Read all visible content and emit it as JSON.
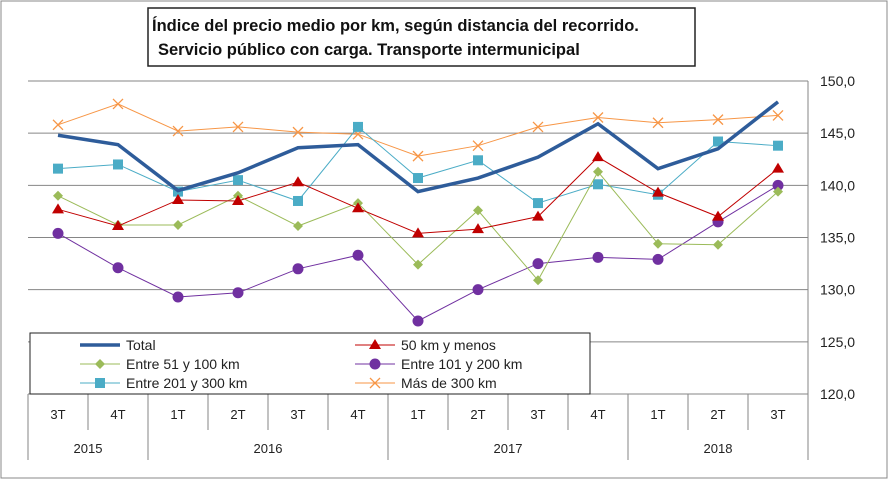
{
  "chart_data": {
    "type": "line",
    "title": [
      "Índice del precio medio por km, según distancia del recorrido.",
      "Servicio público con carga. Transporte  intermunicipal"
    ],
    "categories": [
      "3T",
      "4T",
      "1T",
      "2T",
      "3T",
      "4T",
      "1T",
      "2T",
      "3T",
      "4T",
      "1T",
      "2T",
      "3T"
    ],
    "years": [
      {
        "label": "2015",
        "span": 2
      },
      {
        "label": "2016",
        "span": 4
      },
      {
        "label": "2017",
        "span": 4
      },
      {
        "label": "2018",
        "span": 3
      }
    ],
    "ylim": [
      120,
      150
    ],
    "yticks": [
      "120,0",
      "125,0",
      "130,0",
      "135,0",
      "140,0",
      "145,0",
      "150,0"
    ],
    "grid": true,
    "legend_position": "bottom-left",
    "series": [
      {
        "name": "Total",
        "color": "#2E5C9A",
        "marker": "none",
        "values": [
          144.8,
          143.9,
          139.5,
          141.2,
          143.6,
          143.9,
          139.4,
          140.7,
          142.7,
          145.9,
          141.6,
          143.5,
          148.0
        ]
      },
      {
        "name": "50 km y menos",
        "color": "#C00000",
        "marker": "triangle",
        "values": [
          137.7,
          136.1,
          138.6,
          138.5,
          140.3,
          137.8,
          135.4,
          135.8,
          137.0,
          142.7,
          139.3,
          137.0,
          141.6
        ]
      },
      {
        "name": "Entre 51 y 100 km",
        "color": "#9BBB59",
        "marker": "diamond",
        "values": [
          139.0,
          136.2,
          136.2,
          139.0,
          136.1,
          138.3,
          132.4,
          137.6,
          130.9,
          141.3,
          134.4,
          134.3,
          139.4
        ]
      },
      {
        "name": "Entre 101 y 200 km",
        "color": "#7030A0",
        "marker": "circle",
        "values": [
          135.4,
          132.1,
          129.3,
          129.7,
          132.0,
          133.3,
          127.0,
          130.0,
          132.5,
          133.1,
          132.9,
          136.5,
          140.0
        ]
      },
      {
        "name": "Entre 201 y 300 km",
        "color": "#4BACC6",
        "marker": "square",
        "values": [
          141.6,
          142.0,
          139.4,
          140.5,
          138.5,
          145.6,
          140.7,
          142.4,
          138.3,
          140.1,
          139.1,
          144.2,
          143.8
        ]
      },
      {
        "name": "Más de 300 km",
        "color": "#F79646",
        "marker": "x",
        "values": [
          145.8,
          147.8,
          145.2,
          145.6,
          145.1,
          144.9,
          142.8,
          143.8,
          145.6,
          146.5,
          146.0,
          146.3,
          146.7
        ]
      }
    ]
  }
}
